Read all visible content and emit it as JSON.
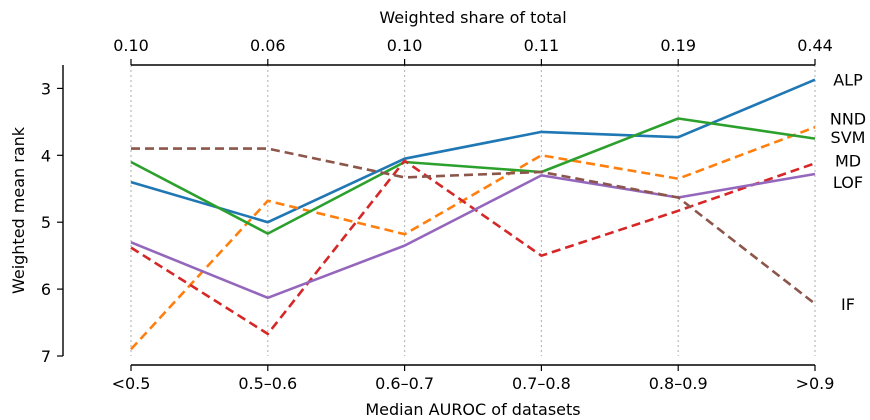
{
  "chart_data": {
    "type": "line",
    "categories": [
      "<0.5",
      "0.5–0.6",
      "0.6–0.7",
      "0.7–0.8",
      "0.8–0.9",
      ">0.9"
    ],
    "top_ticks": [
      "0.10",
      "0.06",
      "0.10",
      "0.11",
      "0.19",
      "0.44"
    ],
    "xlabel": "Median AUROC of datasets",
    "top_xlabel": "Weighted share of total",
    "ylabel": "Weighted mean rank",
    "ylim": [
      7.0,
      2.65
    ],
    "y_inverted": true,
    "y_ticks": [
      3,
      4,
      5,
      6,
      7
    ],
    "grid": "vertical dotted",
    "series": [
      {
        "name": "ALP",
        "values": [
          4.4,
          5.0,
          4.05,
          3.65,
          3.73,
          2.87
        ],
        "color": "#1f77b4",
        "dash": "solid",
        "label_y": 2.87
      },
      {
        "name": "NND",
        "values": [
          6.9,
          4.68,
          5.18,
          4.0,
          4.35,
          3.58
        ],
        "color": "#ff7f0e",
        "dash": "dashed",
        "label_y": 3.45
      },
      {
        "name": "SVM",
        "values": [
          4.1,
          5.17,
          4.1,
          4.25,
          3.45,
          3.75
        ],
        "color": "#2ca02c",
        "dash": "solid",
        "label_y": 3.73
      },
      {
        "name": "MD",
        "values": [
          5.38,
          6.67,
          4.08,
          5.5,
          4.83,
          4.12
        ],
        "color": "#d62728",
        "dash": "dashed",
        "label_y": 4.08
      },
      {
        "name": "LOF",
        "values": [
          5.3,
          6.13,
          5.35,
          4.3,
          4.63,
          4.28
        ],
        "color": "#9467bd",
        "dash": "solid",
        "label_y": 4.4
      },
      {
        "name": "IF",
        "values": [
          3.9,
          3.9,
          4.33,
          4.25,
          4.63,
          6.22
        ],
        "color": "#8c564b",
        "dash": "dashed",
        "label_y": 6.22
      }
    ]
  }
}
